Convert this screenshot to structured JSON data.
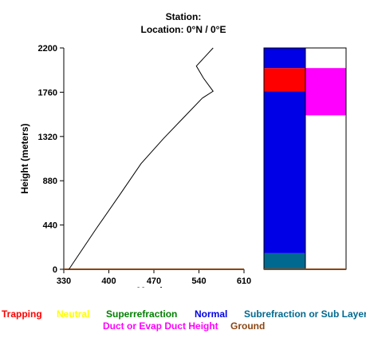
{
  "header": {
    "station": "Station:",
    "location": "Location:   0°N /   0°E"
  },
  "chart_data": {
    "type": "line",
    "xlabel": "M-units",
    "ylabel": "Height (meters)",
    "xlim": [
      330,
      610
    ],
    "ylim": [
      0,
      2200
    ],
    "x_ticks": [
      "330",
      "400",
      "470",
      "540",
      "610"
    ],
    "y_ticks": [
      "0",
      "440",
      "880",
      "1320",
      "1760",
      "2200"
    ],
    "series": [
      {
        "x": [
          338,
          380,
          418,
          450,
          485,
          515,
          545,
          562,
          547,
          536,
          562
        ],
        "y": [
          0,
          400,
          750,
          1050,
          1300,
          1500,
          1700,
          1770,
          1900,
          2020,
          2200
        ],
        "color": "#000000"
      }
    ],
    "ground_line_color": "#8b4513",
    "condition_columns": {
      "left": [
        {
          "from": 0,
          "to": 160,
          "condition": "subrefraction",
          "color": "#006990"
        },
        {
          "from": 160,
          "to": 1770,
          "condition": "normal",
          "color": "#0000e6"
        },
        {
          "from": 1770,
          "to": 2000,
          "condition": "trapping",
          "color": "#ff0000"
        },
        {
          "from": 2000,
          "to": 2200,
          "condition": "normal",
          "color": "#0000e6"
        }
      ],
      "right": [
        {
          "from": 1530,
          "to": 2000,
          "condition": "duct",
          "color": "#ff00ff"
        }
      ]
    }
  },
  "legend": [
    {
      "label": "Trapping",
      "color": "#ff0000"
    },
    {
      "label": "Neutral",
      "color": "#ffff00"
    },
    {
      "label": "Superrefraction",
      "color": "#008000"
    },
    {
      "label": "Normal",
      "color": "#0000e6"
    },
    {
      "label": "Subrefraction or Sub Layer",
      "color": "#006990"
    },
    {
      "label": "Duct or Evap Duct Height",
      "color": "#ff00ff"
    },
    {
      "label": "Ground",
      "color": "#8b4513"
    }
  ]
}
